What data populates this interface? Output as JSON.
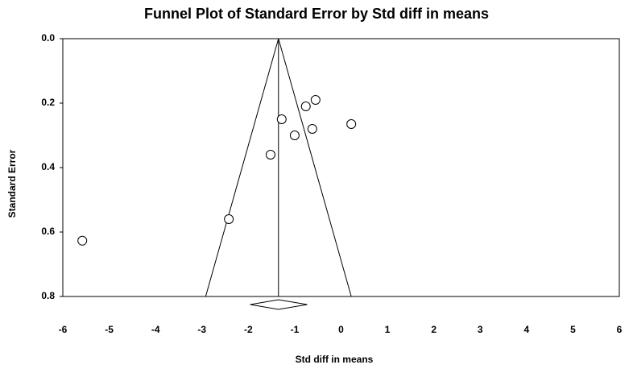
{
  "chart_data": {
    "type": "scatter",
    "title": "Funnel Plot of Standard Error by Std diff in means",
    "x_label": "Std diff in means",
    "y_label": "Standard Error",
    "x": [
      -5.58,
      -2.42,
      -1.52,
      -1.28,
      -1.0,
      -0.76,
      -0.55,
      -0.62,
      0.22
    ],
    "values": [
      0.627,
      0.56,
      0.36,
      0.25,
      0.3,
      0.21,
      0.19,
      0.28,
      0.265
    ],
    "xlim": [
      -6,
      6
    ],
    "xticks": [
      -6,
      -5,
      -4,
      -3,
      -2,
      -1,
      0,
      1,
      2,
      3,
      4,
      5,
      6
    ],
    "ylim": [
      0,
      0.8
    ],
    "yticks": [
      {
        "value": 0,
        "label": "0.0"
      },
      0.2,
      0.4,
      0.6,
      0.8
    ],
    "y_inverted": true,
    "funnel": {
      "center": -1.35,
      "bottom": [
        -2.92,
        0.22
      ]
    },
    "pooled": {
      "estimate": -1.35,
      "ci": [
        -1.96,
        -0.73
      ]
    }
  }
}
